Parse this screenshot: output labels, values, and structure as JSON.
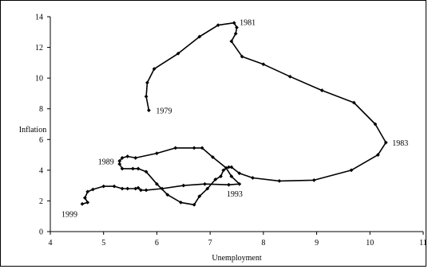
{
  "chart_data": {
    "type": "line",
    "xlabel": "Unemployment",
    "ylabel": "Inflation",
    "xlim": [
      4,
      11
    ],
    "ylim": [
      0,
      14
    ],
    "xticks": [
      4,
      5,
      6,
      7,
      8,
      9,
      10,
      11
    ],
    "yticks": [
      0,
      2,
      4,
      6,
      8,
      10,
      12,
      14
    ],
    "grid": false,
    "series": [
      {
        "points": [
          [
            5.85,
            7.9
          ],
          [
            5.8,
            8.8
          ],
          [
            5.82,
            9.7
          ],
          [
            5.95,
            10.6
          ],
          [
            6.4,
            11.6
          ],
          [
            6.8,
            12.7
          ],
          [
            7.15,
            13.45
          ],
          [
            7.45,
            13.6
          ],
          [
            7.5,
            13.3
          ],
          [
            7.48,
            12.9
          ],
          [
            7.4,
            12.4
          ],
          [
            7.6,
            11.4
          ],
          [
            8.0,
            10.9
          ],
          [
            8.5,
            10.1
          ],
          [
            9.1,
            9.2
          ],
          [
            9.7,
            8.4
          ],
          [
            10.1,
            7.0
          ],
          [
            10.3,
            5.8
          ],
          [
            10.15,
            5.0
          ],
          [
            9.65,
            4.0
          ],
          [
            8.95,
            3.35
          ],
          [
            8.3,
            3.3
          ],
          [
            7.8,
            3.5
          ],
          [
            7.55,
            3.8
          ],
          [
            7.4,
            4.2
          ],
          [
            7.35,
            4.2
          ],
          [
            7.25,
            4.0
          ],
          [
            7.2,
            3.6
          ],
          [
            7.1,
            3.4
          ],
          [
            6.95,
            2.8
          ],
          [
            6.8,
            2.3
          ],
          [
            6.7,
            1.75
          ],
          [
            6.45,
            1.9
          ],
          [
            6.2,
            2.4
          ],
          [
            6.0,
            3.1
          ],
          [
            5.8,
            3.9
          ],
          [
            5.65,
            4.1
          ],
          [
            5.55,
            4.1
          ],
          [
            5.35,
            4.1
          ],
          [
            5.3,
            4.4
          ],
          [
            5.3,
            4.6
          ],
          [
            5.35,
            4.8
          ],
          [
            5.45,
            4.9
          ],
          [
            5.6,
            4.8
          ],
          [
            6.0,
            5.1
          ],
          [
            6.35,
            5.45
          ],
          [
            6.7,
            5.45
          ],
          [
            6.85,
            5.45
          ],
          [
            7.05,
            4.85
          ],
          [
            7.3,
            4.15
          ],
          [
            7.4,
            3.6
          ],
          [
            7.55,
            3.1
          ],
          [
            7.35,
            3.05
          ],
          [
            6.9,
            3.1
          ],
          [
            6.5,
            3.0
          ],
          [
            6.1,
            2.8
          ],
          [
            5.8,
            2.7
          ],
          [
            5.7,
            2.7
          ],
          [
            5.65,
            2.85
          ],
          [
            5.6,
            2.8
          ],
          [
            5.45,
            2.8
          ],
          [
            5.35,
            2.8
          ],
          [
            5.2,
            2.95
          ],
          [
            5.0,
            2.95
          ],
          [
            4.8,
            2.75
          ],
          [
            4.7,
            2.6
          ],
          [
            4.65,
            2.2
          ],
          [
            4.7,
            1.9
          ],
          [
            4.6,
            1.8
          ]
        ]
      }
    ],
    "annotations": [
      {
        "text": "1979",
        "x": 5.85,
        "y": 7.9
      },
      {
        "text": "1981",
        "x": 7.45,
        "y": 13.6
      },
      {
        "text": "1983",
        "x": 10.3,
        "y": 5.8
      },
      {
        "text": "1989",
        "x": 5.3,
        "y": 4.6
      },
      {
        "text": "1993",
        "x": 7.55,
        "y": 3.1
      },
      {
        "text": "1999",
        "x": 4.6,
        "y": 1.8
      }
    ]
  }
}
